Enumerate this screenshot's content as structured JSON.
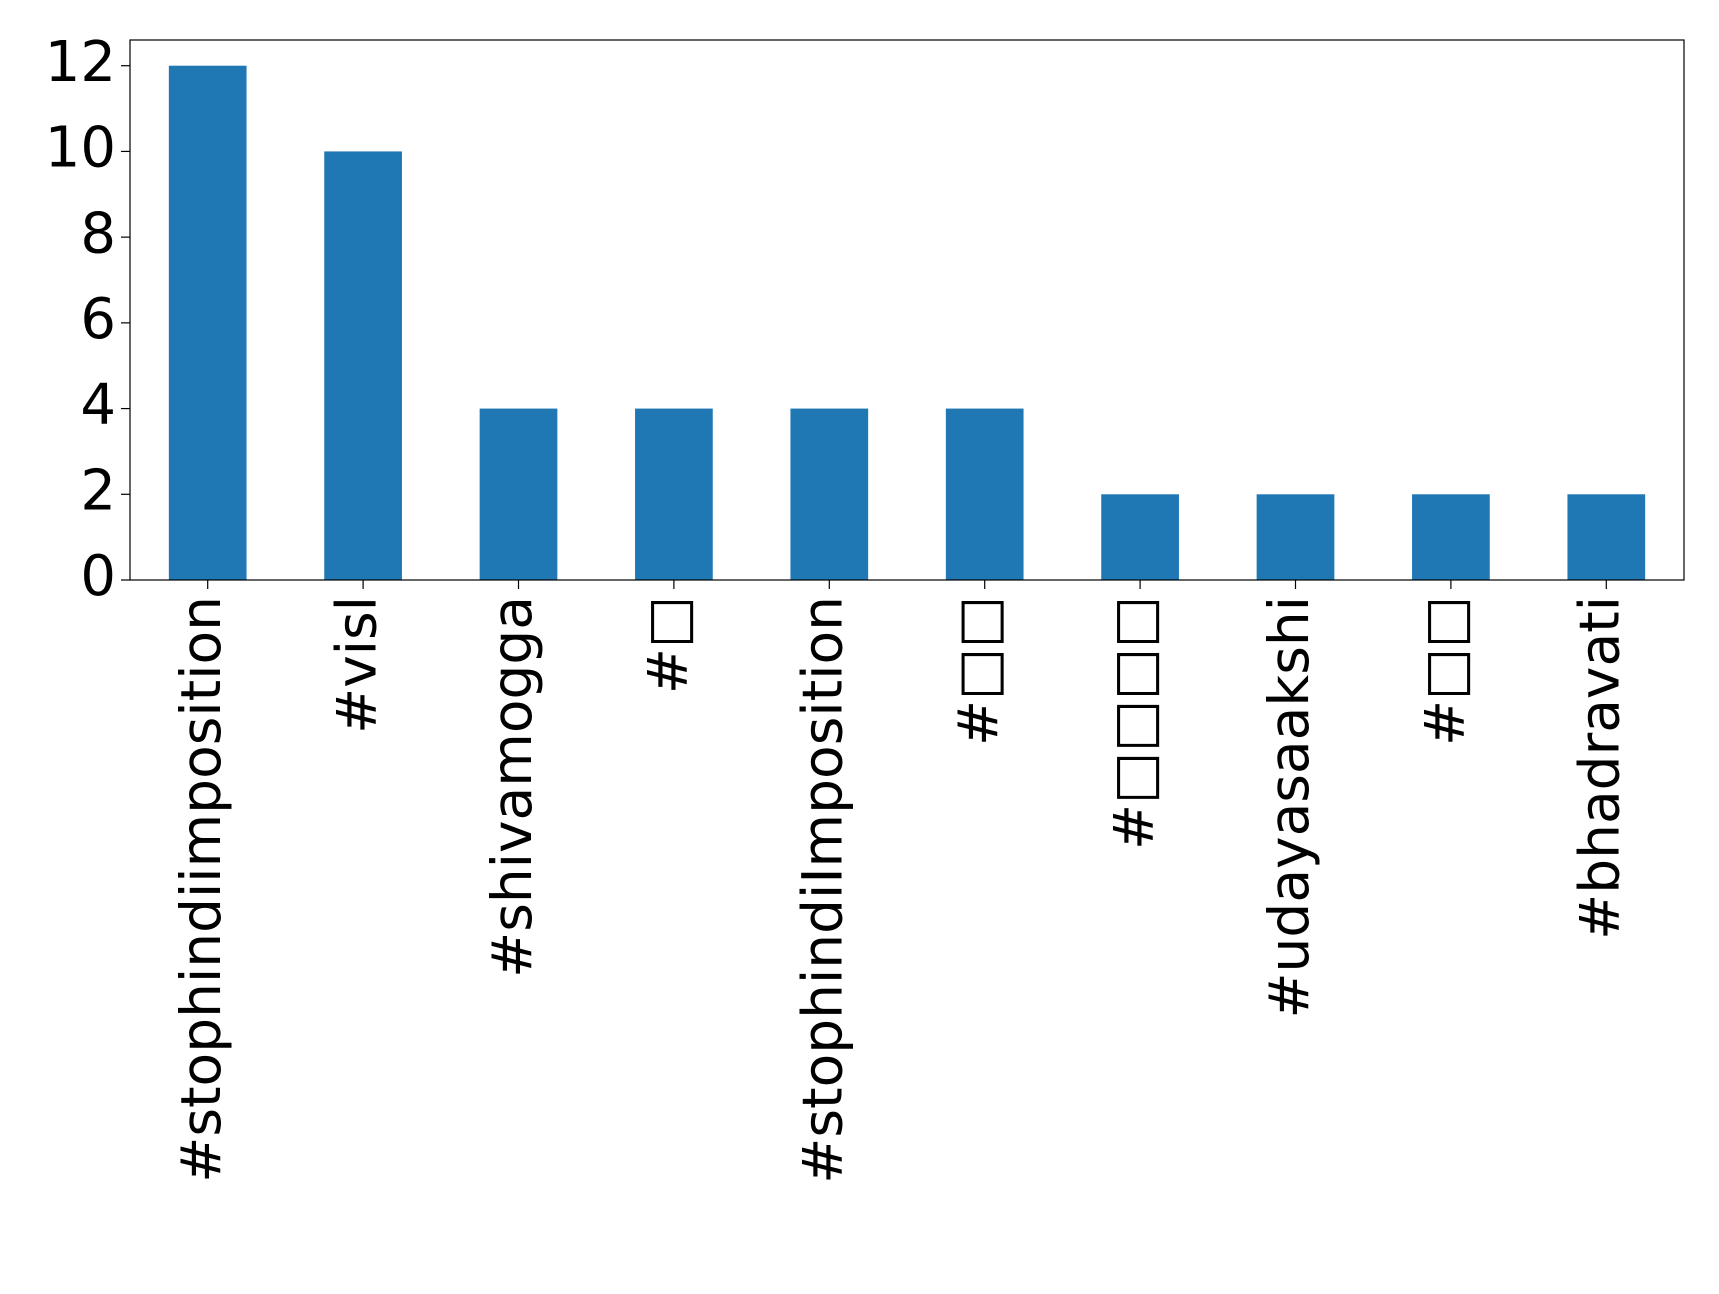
{
  "chart_data": {
    "type": "bar",
    "categories": [
      "#stophindiimposition",
      "#visl",
      "#shivamogga",
      "#□",
      "#stophindiImposition",
      "#□□",
      "#□□□□",
      "#udayasaakshi",
      "#□□",
      "#bhadravati"
    ],
    "values": [
      12,
      10,
      4,
      4,
      4,
      4,
      2,
      2,
      2,
      2
    ],
    "color": "#1f77b4",
    "ylim": [
      0,
      12.6
    ],
    "yticks": [
      0,
      2,
      4,
      6,
      8,
      10,
      12
    ],
    "grid": false
  }
}
